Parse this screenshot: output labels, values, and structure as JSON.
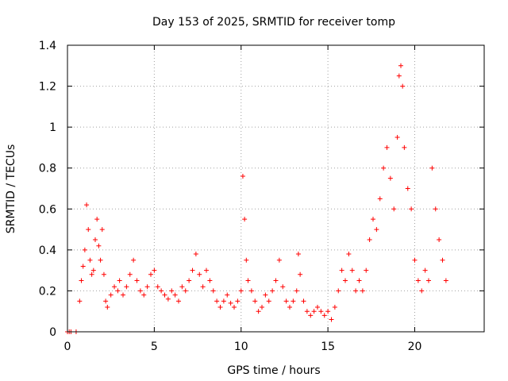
{
  "chart_data": {
    "type": "scatter",
    "title": "Day 153 of 2025, SRMTID for receiver tomp",
    "xlabel": "GPS time / hours",
    "ylabel": "SRMTID / TECUs",
    "xlim": [
      0,
      24
    ],
    "ylim": [
      0,
      1.4
    ],
    "xticks": [
      0,
      5,
      10,
      15,
      20
    ],
    "yticks": [
      0,
      0.2,
      0.4,
      0.6,
      0.8,
      1,
      1.2,
      1.4
    ],
    "ytick_labels": [
      "0",
      "0.2",
      "0.4",
      "0.6",
      "0.8",
      "1",
      "1.2",
      "1.4"
    ],
    "grid": true,
    "marker": "+",
    "series": [
      {
        "name": "SRMTID",
        "color": "#ff0000",
        "x": [
          0.0,
          0.1,
          0.2,
          0.5,
          0.7,
          0.8,
          0.9,
          1.0,
          1.1,
          1.2,
          1.3,
          1.4,
          1.5,
          1.6,
          1.7,
          1.8,
          1.9,
          2.0,
          2.1,
          2.2,
          2.3,
          2.5,
          2.7,
          2.9,
          3.0,
          3.2,
          3.4,
          3.6,
          3.8,
          4.0,
          4.2,
          4.4,
          4.6,
          4.8,
          5.0,
          5.2,
          5.4,
          5.6,
          5.8,
          6.0,
          6.2,
          6.4,
          6.6,
          6.8,
          7.0,
          7.2,
          7.4,
          7.6,
          7.8,
          8.0,
          8.2,
          8.4,
          8.6,
          8.8,
          9.0,
          9.2,
          9.4,
          9.6,
          9.8,
          10.0,
          10.1,
          10.2,
          10.3,
          10.4,
          10.6,
          10.8,
          11.0,
          11.2,
          11.4,
          11.6,
          11.8,
          12.0,
          12.2,
          12.4,
          12.6,
          12.8,
          13.0,
          13.2,
          13.3,
          13.4,
          13.6,
          13.8,
          14.0,
          14.2,
          14.4,
          14.6,
          14.8,
          15.0,
          15.2,
          15.4,
          15.6,
          15.8,
          16.0,
          16.2,
          16.4,
          16.6,
          16.8,
          17.0,
          17.2,
          17.4,
          17.6,
          17.8,
          18.0,
          18.2,
          18.4,
          18.6,
          18.8,
          19.0,
          19.1,
          19.2,
          19.3,
          19.4,
          19.6,
          19.8,
          20.0,
          20.2,
          20.4,
          20.6,
          20.8,
          21.0,
          21.2,
          21.4,
          21.6,
          21.8
        ],
        "y": [
          0.0,
          0.0,
          0.0,
          0.0,
          0.15,
          0.25,
          0.32,
          0.4,
          0.62,
          0.5,
          0.35,
          0.28,
          0.3,
          0.45,
          0.55,
          0.42,
          0.35,
          0.5,
          0.28,
          0.15,
          0.12,
          0.18,
          0.22,
          0.2,
          0.25,
          0.18,
          0.22,
          0.28,
          0.35,
          0.25,
          0.2,
          0.18,
          0.22,
          0.28,
          0.3,
          0.22,
          0.2,
          0.18,
          0.16,
          0.2,
          0.18,
          0.15,
          0.22,
          0.2,
          0.25,
          0.3,
          0.38,
          0.28,
          0.22,
          0.3,
          0.25,
          0.2,
          0.15,
          0.12,
          0.15,
          0.18,
          0.14,
          0.12,
          0.15,
          0.2,
          0.76,
          0.55,
          0.35,
          0.25,
          0.2,
          0.15,
          0.1,
          0.12,
          0.18,
          0.15,
          0.2,
          0.25,
          0.35,
          0.22,
          0.15,
          0.12,
          0.15,
          0.2,
          0.38,
          0.28,
          0.15,
          0.1,
          0.08,
          0.1,
          0.12,
          0.1,
          0.08,
          0.1,
          0.06,
          0.12,
          0.2,
          0.3,
          0.25,
          0.38,
          0.3,
          0.2,
          0.25,
          0.2,
          0.3,
          0.45,
          0.55,
          0.5,
          0.65,
          0.8,
          0.9,
          0.75,
          0.6,
          0.95,
          1.25,
          1.3,
          1.2,
          0.9,
          0.7,
          0.6,
          0.35,
          0.25,
          0.2,
          0.3,
          0.25,
          0.8,
          0.6,
          0.45,
          0.35,
          0.25
        ]
      }
    ]
  }
}
